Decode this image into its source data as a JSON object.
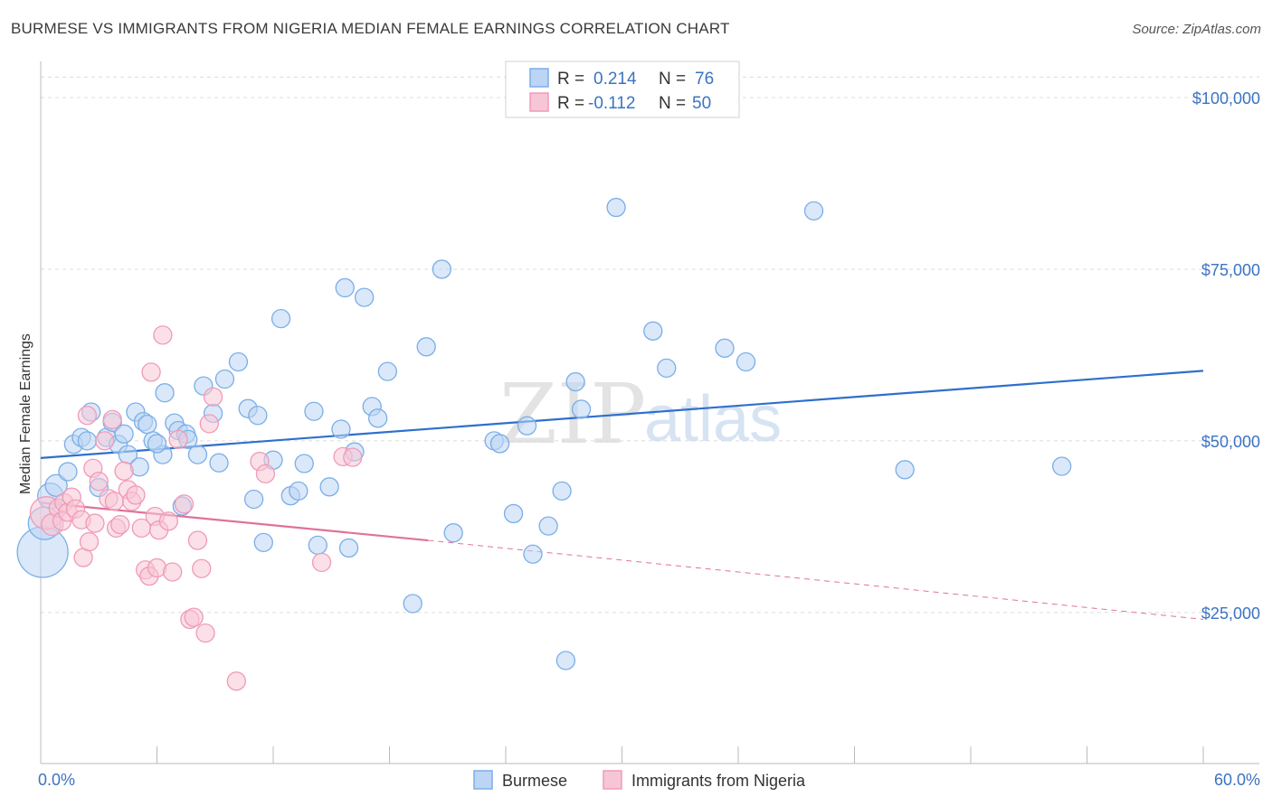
{
  "title": "BURMESE VS IMMIGRANTS FROM NIGERIA MEDIAN FEMALE EARNINGS CORRELATION CHART",
  "source": "Source: ZipAtlas.com",
  "watermark": {
    "zip": "ZIP",
    "atlas": "atlas"
  },
  "chart_data": {
    "type": "scatter",
    "ylabel": "Median Female Earnings",
    "xlabel": "",
    "xlim": [
      0,
      60
    ],
    "ylim": [
      3000,
      105000
    ],
    "x_tick_labels": [
      "0.0%",
      "60.0%"
    ],
    "y_ticks": [
      25000,
      50000,
      75000,
      100000
    ],
    "y_tick_labels": [
      "$25,000",
      "$50,000",
      "$75,000",
      "$100,000"
    ],
    "grid": "horizontal dashed",
    "legend_position": "top-center",
    "stats": [
      {
        "r_label": "R =",
        "r_value": "0.214",
        "n_label": "N =",
        "n_value": "76"
      },
      {
        "r_label": "R =",
        "r_value": "-0.112",
        "n_label": "N =",
        "n_value": "50"
      }
    ],
    "series": [
      {
        "name": "Burmese",
        "color": "#7aaee8",
        "fill": "#bcd5f4",
        "trend": {
          "x0": 0,
          "y0": 47500,
          "x1": 60,
          "y1": 60200,
          "color": "#2f6fcc"
        },
        "points": [
          [
            0.1,
            33800,
            28
          ],
          [
            0.2,
            38000,
            18
          ],
          [
            0.5,
            42000,
            14
          ],
          [
            0.8,
            43500,
            12
          ],
          [
            1.4,
            45500,
            10
          ],
          [
            1.7,
            49500,
            10
          ],
          [
            2.1,
            50500,
            10
          ],
          [
            2.4,
            50000,
            10
          ],
          [
            2.6,
            54200,
            10
          ],
          [
            3.0,
            43200,
            10
          ],
          [
            3.4,
            50500,
            10
          ],
          [
            3.7,
            52700,
            10
          ],
          [
            4.0,
            49500,
            10
          ],
          [
            4.3,
            51000,
            10
          ],
          [
            4.5,
            48000,
            10
          ],
          [
            4.9,
            54200,
            10
          ],
          [
            5.1,
            46200,
            10
          ],
          [
            5.3,
            52800,
            10
          ],
          [
            5.5,
            52400,
            10
          ],
          [
            5.8,
            50000,
            10
          ],
          [
            6.3,
            48000,
            10
          ],
          [
            6.4,
            57000,
            10
          ],
          [
            6.9,
            52600,
            10
          ],
          [
            7.1,
            51500,
            10
          ],
          [
            7.5,
            51000,
            10
          ],
          [
            7.6,
            50200,
            10
          ],
          [
            7.3,
            40500,
            10
          ],
          [
            8.1,
            48000,
            10
          ],
          [
            8.4,
            58000,
            10
          ],
          [
            8.9,
            54000,
            10
          ],
          [
            9.2,
            46800,
            10
          ],
          [
            9.5,
            59000,
            10
          ],
          [
            10.2,
            61500,
            10
          ],
          [
            10.7,
            54700,
            10
          ],
          [
            11.0,
            41500,
            10
          ],
          [
            11.2,
            53700,
            10
          ],
          [
            11.5,
            35200,
            10
          ],
          [
            12.0,
            47200,
            10
          ],
          [
            12.4,
            67800,
            10
          ],
          [
            12.9,
            42000,
            10
          ],
          [
            13.3,
            42700,
            10
          ],
          [
            13.6,
            46700,
            10
          ],
          [
            14.1,
            54300,
            10
          ],
          [
            14.3,
            34800,
            10
          ],
          [
            14.9,
            43300,
            10
          ],
          [
            15.5,
            51700,
            10
          ],
          [
            15.7,
            72300,
            10
          ],
          [
            15.9,
            34400,
            10
          ],
          [
            16.2,
            48400,
            10
          ],
          [
            16.7,
            70900,
            10
          ],
          [
            17.1,
            55000,
            10
          ],
          [
            17.4,
            53300,
            10
          ],
          [
            17.9,
            60100,
            10
          ],
          [
            19.2,
            26300,
            10
          ],
          [
            19.9,
            63700,
            10
          ],
          [
            20.7,
            75000,
            10
          ],
          [
            21.3,
            36600,
            10
          ],
          [
            23.4,
            50000,
            10
          ],
          [
            23.7,
            49600,
            10
          ],
          [
            24.4,
            39400,
            10
          ],
          [
            25.1,
            52200,
            10
          ],
          [
            25.4,
            33500,
            10
          ],
          [
            26.2,
            37600,
            10
          ],
          [
            26.9,
            42700,
            10
          ],
          [
            27.1,
            18000,
            10
          ],
          [
            27.6,
            58600,
            10
          ],
          [
            27.9,
            54600,
            10
          ],
          [
            29.7,
            84000,
            10
          ],
          [
            31.6,
            66000,
            10
          ],
          [
            32.3,
            60600,
            10
          ],
          [
            35.3,
            63500,
            10
          ],
          [
            36.4,
            61500,
            10
          ],
          [
            39.9,
            83500,
            10
          ],
          [
            44.6,
            45800,
            10
          ],
          [
            52.7,
            46300,
            10
          ],
          [
            6.0,
            49600,
            10
          ]
        ]
      },
      {
        "name": "Immigrants from Nigeria",
        "color": "#f09ab8",
        "fill": "#f7c6d6",
        "trend": {
          "x0": 0,
          "y0": 41000,
          "x1": 20,
          "y1": 35500,
          "color": "#e0729a",
          "dash_x1": 60,
          "dash_y1": 24000
        },
        "points": [
          [
            0.3,
            39500,
            18
          ],
          [
            0.6,
            37800,
            12
          ],
          [
            0.9,
            40200,
            10
          ],
          [
            1.2,
            41000,
            10
          ],
          [
            1.1,
            38300,
            10
          ],
          [
            1.4,
            39600,
            10
          ],
          [
            1.6,
            41800,
            10
          ],
          [
            1.8,
            40100,
            10
          ],
          [
            2.1,
            38500,
            10
          ],
          [
            2.2,
            33000,
            10
          ],
          [
            2.4,
            53700,
            10
          ],
          [
            2.5,
            35300,
            10
          ],
          [
            2.7,
            46000,
            10
          ],
          [
            2.8,
            38000,
            10
          ],
          [
            3.0,
            44100,
            10
          ],
          [
            3.3,
            50000,
            10
          ],
          [
            3.5,
            41600,
            10
          ],
          [
            3.7,
            53100,
            10
          ],
          [
            3.8,
            41200,
            10
          ],
          [
            3.9,
            37300,
            10
          ],
          [
            4.1,
            37800,
            10
          ],
          [
            4.3,
            45600,
            10
          ],
          [
            4.5,
            42900,
            10
          ],
          [
            4.7,
            41200,
            10
          ],
          [
            4.9,
            42100,
            10
          ],
          [
            5.2,
            37300,
            10
          ],
          [
            5.4,
            31200,
            10
          ],
          [
            5.6,
            30300,
            10
          ],
          [
            5.7,
            60000,
            10
          ],
          [
            5.9,
            39000,
            10
          ],
          [
            6.0,
            31500,
            10
          ],
          [
            6.1,
            37000,
            10
          ],
          [
            6.3,
            65400,
            10
          ],
          [
            6.6,
            38300,
            10
          ],
          [
            6.8,
            30900,
            10
          ],
          [
            7.1,
            50200,
            10
          ],
          [
            7.4,
            40800,
            10
          ],
          [
            7.7,
            24000,
            10
          ],
          [
            7.9,
            24300,
            10
          ],
          [
            8.1,
            35500,
            10
          ],
          [
            8.3,
            31400,
            10
          ],
          [
            8.5,
            22000,
            10
          ],
          [
            8.7,
            52500,
            10
          ],
          [
            8.9,
            56400,
            10
          ],
          [
            10.1,
            15000,
            10
          ],
          [
            11.3,
            47000,
            10
          ],
          [
            11.6,
            45200,
            10
          ],
          [
            14.5,
            32300,
            10
          ],
          [
            15.6,
            47700,
            10
          ],
          [
            16.1,
            47600,
            10
          ]
        ]
      }
    ]
  }
}
